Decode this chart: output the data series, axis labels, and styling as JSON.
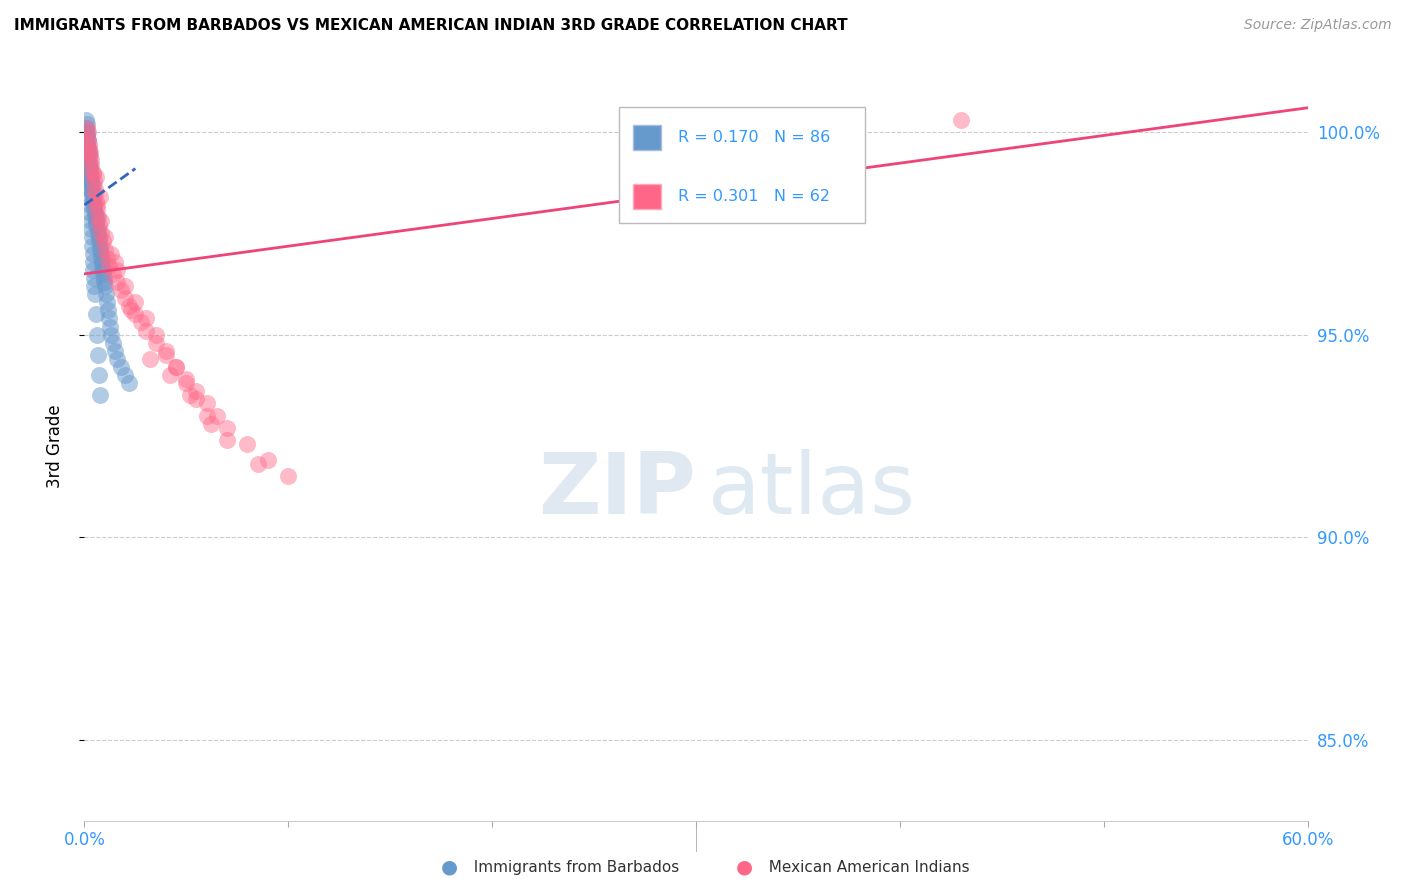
{
  "title": "IMMIGRANTS FROM BARBADOS VS MEXICAN AMERICAN INDIAN 3RD GRADE CORRELATION CHART",
  "source": "Source: ZipAtlas.com",
  "ylabel": "3rd Grade",
  "y_ticks": [
    85.0,
    90.0,
    95.0,
    100.0
  ],
  "y_tick_labels": [
    "85.0%",
    "90.0%",
    "95.0%",
    "100.0%"
  ],
  "xlim": [
    0.0,
    60.0
  ],
  "ylim": [
    83.0,
    101.5
  ],
  "color_blue": "#6699CC",
  "color_pink": "#FF6688",
  "color_blue_line": "#3366BB",
  "color_pink_line": "#EE4477",
  "color_axis_labels": "#3399FF",
  "background_color": "#FFFFFF",
  "grid_color": "#CCCCCC",
  "tick_color": "#3399FF",
  "blue_x": [
    0.05,
    0.08,
    0.1,
    0.12,
    0.13,
    0.15,
    0.15,
    0.17,
    0.18,
    0.2,
    0.2,
    0.22,
    0.25,
    0.25,
    0.27,
    0.28,
    0.3,
    0.3,
    0.32,
    0.33,
    0.35,
    0.35,
    0.38,
    0.4,
    0.4,
    0.42,
    0.45,
    0.48,
    0.5,
    0.52,
    0.55,
    0.58,
    0.6,
    0.65,
    0.68,
    0.7,
    0.72,
    0.75,
    0.78,
    0.8,
    0.82,
    0.85,
    0.88,
    0.9,
    0.92,
    0.95,
    0.98,
    1.0,
    1.05,
    1.1,
    1.15,
    1.2,
    1.25,
    1.3,
    1.4,
    1.5,
    1.6,
    1.8,
    2.0,
    2.2,
    0.1,
    0.12,
    0.14,
    0.16,
    0.18,
    0.2,
    0.22,
    0.24,
    0.26,
    0.28,
    0.3,
    0.32,
    0.34,
    0.36,
    0.38,
    0.4,
    0.42,
    0.44,
    0.46,
    0.48,
    0.5,
    0.55,
    0.6,
    0.65,
    0.7,
    0.75
  ],
  "blue_y": [
    100.0,
    100.1,
    99.8,
    100.2,
    99.9,
    100.0,
    99.7,
    99.5,
    99.8,
    99.6,
    99.3,
    99.4,
    99.2,
    99.5,
    99.1,
    99.0,
    98.9,
    99.2,
    98.8,
    98.7,
    98.9,
    98.6,
    98.5,
    98.4,
    98.7,
    98.3,
    98.2,
    98.1,
    98.0,
    97.9,
    97.8,
    97.7,
    97.9,
    97.6,
    97.5,
    97.4,
    97.3,
    97.2,
    97.1,
    97.0,
    96.9,
    96.8,
    96.7,
    96.6,
    96.5,
    96.4,
    96.3,
    96.2,
    96.0,
    95.8,
    95.6,
    95.4,
    95.2,
    95.0,
    94.8,
    94.6,
    94.4,
    94.2,
    94.0,
    93.8,
    100.3,
    99.9,
    99.6,
    99.4,
    99.2,
    99.0,
    98.8,
    98.6,
    98.4,
    98.2,
    98.0,
    97.8,
    97.6,
    97.4,
    97.2,
    97.0,
    96.8,
    96.6,
    96.4,
    96.2,
    96.0,
    95.5,
    95.0,
    94.5,
    94.0,
    93.5
  ],
  "pink_x": [
    0.15,
    0.2,
    0.25,
    0.3,
    0.35,
    0.4,
    0.45,
    0.5,
    0.55,
    0.6,
    0.65,
    0.7,
    0.8,
    0.9,
    1.0,
    1.1,
    1.2,
    1.4,
    1.6,
    1.8,
    2.0,
    2.2,
    2.5,
    2.8,
    3.0,
    3.5,
    4.0,
    4.5,
    5.0,
    5.5,
    6.0,
    6.5,
    7.0,
    8.0,
    9.0,
    10.0,
    0.2,
    0.3,
    0.4,
    0.5,
    0.6,
    0.8,
    1.0,
    1.3,
    1.6,
    2.0,
    2.5,
    3.0,
    3.5,
    4.0,
    4.5,
    5.0,
    5.5,
    6.0,
    7.0,
    8.5,
    0.25,
    0.35,
    0.55,
    0.75,
    1.5,
    2.3,
    3.2,
    4.2,
    5.2,
    6.2,
    43.0
  ],
  "pink_y": [
    100.1,
    99.8,
    99.6,
    99.4,
    99.2,
    99.0,
    98.8,
    98.5,
    98.3,
    98.1,
    97.9,
    97.7,
    97.5,
    97.3,
    97.1,
    96.9,
    96.7,
    96.5,
    96.3,
    96.1,
    95.9,
    95.7,
    95.5,
    95.3,
    95.1,
    94.8,
    94.5,
    94.2,
    93.9,
    93.6,
    93.3,
    93.0,
    92.7,
    92.3,
    91.9,
    91.5,
    100.0,
    99.5,
    99.0,
    98.6,
    98.2,
    97.8,
    97.4,
    97.0,
    96.6,
    96.2,
    95.8,
    95.4,
    95.0,
    94.6,
    94.2,
    93.8,
    93.4,
    93.0,
    92.4,
    91.8,
    99.7,
    99.3,
    98.9,
    98.4,
    96.8,
    95.6,
    94.4,
    94.0,
    93.5,
    92.8,
    100.3
  ],
  "blue_line_x": [
    0.0,
    2.5
  ],
  "blue_line_y": [
    98.2,
    99.1
  ],
  "pink_line_x": [
    0.0,
    60.0
  ],
  "pink_line_y": [
    96.5,
    100.6
  ]
}
